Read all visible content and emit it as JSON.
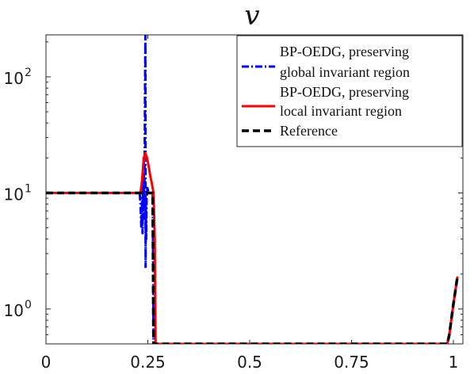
{
  "chart_data": {
    "type": "line",
    "title": "v",
    "xlabel": "",
    "ylabel": "",
    "x_scale": "linear",
    "y_scale": "log",
    "xlim": [
      0,
      1
    ],
    "ylim": [
      0.5,
      230
    ],
    "xticks": [
      {
        "value": 0,
        "label": "0"
      },
      {
        "value": 0.25,
        "label": "0.25"
      },
      {
        "value": 0.5,
        "label": "0.5"
      },
      {
        "value": 0.75,
        "label": "0.75"
      },
      {
        "value": 1,
        "label": "1"
      }
    ],
    "yticks": [
      {
        "value": 1,
        "label": "10",
        "exponent": "0"
      },
      {
        "value": 10,
        "label": "10",
        "exponent": "1"
      },
      {
        "value": 100,
        "label": "10",
        "exponent": "2"
      }
    ],
    "grid": false,
    "legend_position": "top-right",
    "series": [
      {
        "name": "BP-OEDG, preserving global invariant region",
        "color": "#0000ff",
        "style": "dashdot",
        "points": [
          [
            0,
            10
          ],
          [
            0.22,
            10
          ],
          [
            0.23,
            10
          ],
          [
            0.232,
            8
          ],
          [
            0.234,
            5
          ],
          [
            0.236,
            9
          ],
          [
            0.237,
            4.5
          ],
          [
            0.238,
            12
          ],
          [
            0.239,
            8
          ],
          [
            0.24,
            20
          ],
          [
            0.241,
            6
          ],
          [
            0.242,
            14
          ],
          [
            0.243,
            70
          ],
          [
            0.244,
            230
          ],
          [
            0.2445,
            2.3
          ],
          [
            0.245,
            9
          ],
          [
            0.246,
            4
          ],
          [
            0.247,
            9
          ],
          [
            0.249,
            11
          ],
          [
            0.252,
            10
          ],
          [
            0.258,
            10
          ],
          [
            0.262,
            10
          ],
          [
            0.264,
            0.5
          ],
          [
            0.985,
            0.5
          ],
          [
            0.99,
            0.6
          ],
          [
            1,
            1.1
          ],
          [
            1.01,
            1.9
          ]
        ]
      },
      {
        "name": "BP-OEDG, preserving local invariant region",
        "color": "#ff0000",
        "style": "solid",
        "points": [
          [
            0,
            10
          ],
          [
            0.232,
            10
          ],
          [
            0.236,
            13
          ],
          [
            0.24,
            20
          ],
          [
            0.244,
            22
          ],
          [
            0.248,
            20
          ],
          [
            0.252,
            17
          ],
          [
            0.256,
            14
          ],
          [
            0.26,
            12
          ],
          [
            0.264,
            10
          ],
          [
            0.267,
            4
          ],
          [
            0.269,
            0.5
          ],
          [
            0.985,
            0.5
          ],
          [
            0.99,
            0.6
          ],
          [
            1,
            1.1
          ],
          [
            1.01,
            1.9
          ]
        ]
      },
      {
        "name": "Reference",
        "color": "#000000",
        "style": "dashed",
        "points": [
          [
            0,
            10
          ],
          [
            0.262,
            10
          ],
          [
            0.264,
            0.5
          ],
          [
            0.985,
            0.5
          ],
          [
            0.99,
            0.6
          ],
          [
            1,
            1.1
          ],
          [
            1.01,
            1.9
          ]
        ]
      }
    ],
    "legend": [
      {
        "lines": [
          "BP-OEDG, preserving",
          "global invariant region"
        ]
      },
      {
        "lines": [
          "BP-OEDG, preserving",
          "local invariant region"
        ]
      },
      {
        "lines": [
          "Reference"
        ]
      }
    ]
  }
}
